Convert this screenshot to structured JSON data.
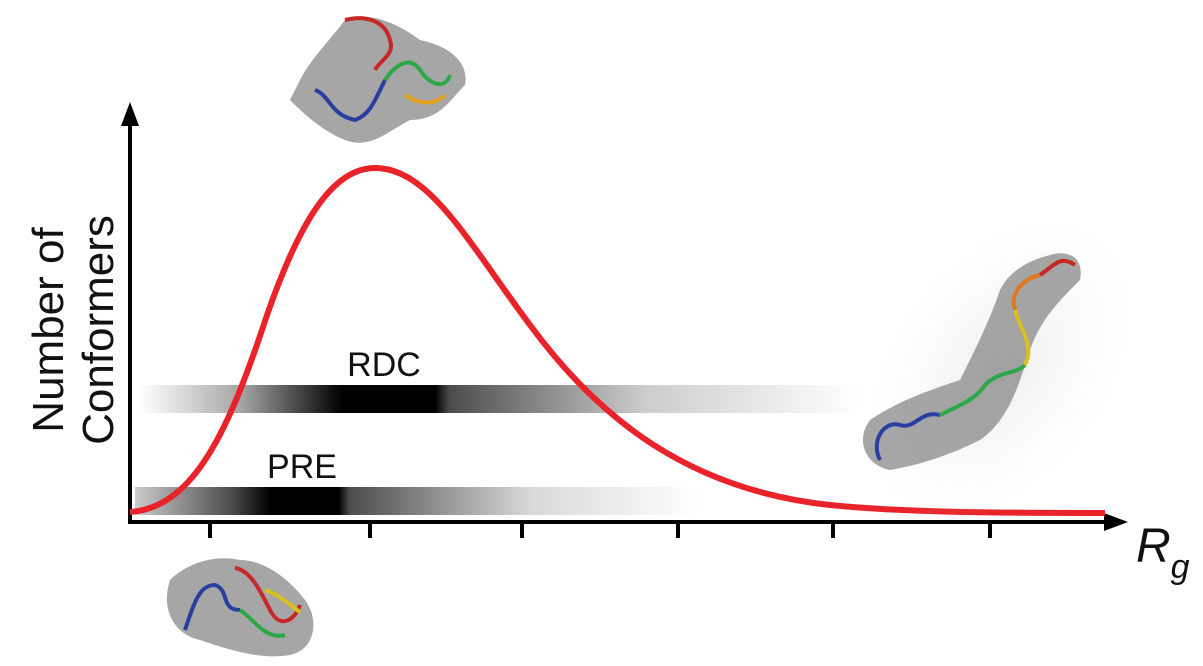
{
  "axes": {
    "y_label": [
      "Number of",
      "Conformers"
    ],
    "x_label": {
      "main": "R",
      "subscript": "g"
    }
  },
  "bands": [
    {
      "label": "RDC"
    },
    {
      "label": "PRE"
    }
  ]
}
